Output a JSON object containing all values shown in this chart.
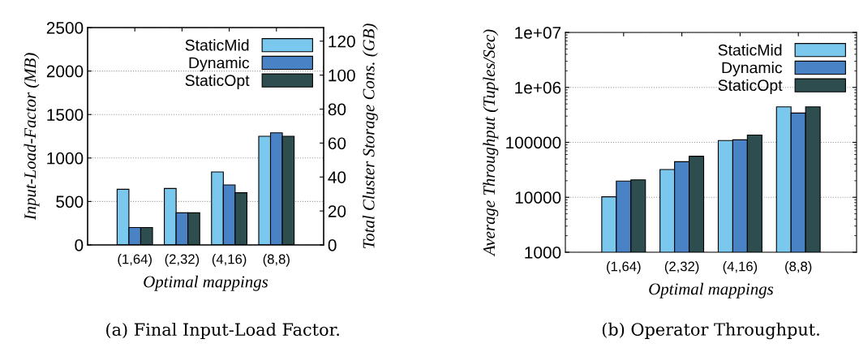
{
  "chart_data": [
    {
      "type": "bar",
      "xlabel": "Optimal mappings",
      "ylabel": "Input-Load-Factor (MB)",
      "y2label": "Total Cluster Storage Cons. (GB)",
      "categories": [
        "(1,64)",
        "(2,32)",
        "(4,16)",
        "(8,8)"
      ],
      "series": [
        {
          "name": "StaticMid",
          "color": "#7ac8ee",
          "values": [
            640,
            650,
            840,
            1250
          ]
        },
        {
          "name": "Dynamic",
          "color": "#4a82c6",
          "values": [
            200,
            370,
            690,
            1290
          ]
        },
        {
          "name": "StaticOpt",
          "color": "#2d4d4f",
          "values": [
            200,
            370,
            600,
            1250
          ]
        }
      ],
      "ylim": [
        0,
        2500
      ],
      "yticks": [
        0,
        500,
        1000,
        1500,
        2000,
        2500
      ],
      "y2lim": [
        0,
        128
      ],
      "y2ticks": [
        0,
        20,
        40,
        60,
        80,
        100,
        120
      ],
      "grid": "y",
      "legend": "top right",
      "annotations": [
        "(a) Final Input-Load Factor."
      ]
    },
    {
      "type": "bar",
      "xlabel": "Optimal mappings",
      "ylabel": "Average Throughput (Tuples/Sec)",
      "categories": [
        "(1,64)",
        "(2,32)",
        "(4,16)",
        "(8,8)"
      ],
      "series": [
        {
          "name": "StaticMid",
          "color": "#7ac8ee",
          "values": [
            10200,
            32000,
            108000,
            443000
          ]
        },
        {
          "name": "Dynamic",
          "color": "#4a82c6",
          "values": [
            19700,
            44500,
            111000,
            342000
          ]
        },
        {
          "name": "StaticOpt",
          "color": "#2d4d4f",
          "values": [
            20800,
            55800,
            136000,
            443000
          ]
        }
      ],
      "log": "y",
      "ylim": [
        1000,
        10000000
      ],
      "yticks": [
        1000,
        10000,
        100000,
        {
          "value": 1000000,
          "label": "1e+06"
        },
        {
          "value": 10000000,
          "label": "1e+07"
        }
      ],
      "grid": "y",
      "legend": "top right",
      "annotations": [
        "(b) Operator Throughput."
      ]
    }
  ]
}
